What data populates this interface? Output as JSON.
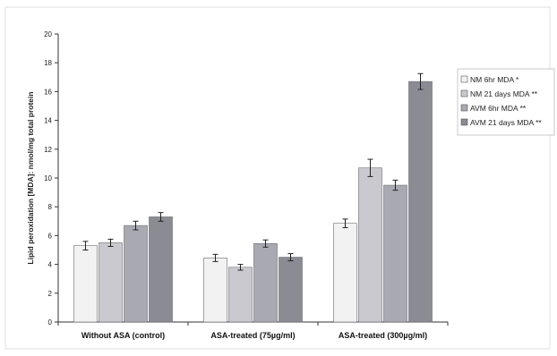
{
  "chart_data": {
    "type": "bar",
    "title": "",
    "xlabel": "",
    "ylabel": "Lipid peroxidation [MDA]: nmol/mg total protein",
    "ylim": [
      0,
      20
    ],
    "yticks": [
      "0",
      "2",
      "4",
      "6",
      "8",
      "10",
      "12",
      "14",
      "16",
      "18",
      "20"
    ],
    "categories": [
      "Without ASA (control)",
      "ASA-treated (75µg/ml)",
      "ASA-treated (300µg/ml)"
    ],
    "series": [
      {
        "name": "NM 6hr MDA *",
        "color": "#f2f2f2",
        "values": [
          5.3,
          4.45,
          6.85
        ],
        "errors": [
          0.3,
          0.25,
          0.3
        ]
      },
      {
        "name": "NM 21 days MDA **",
        "color": "#c9c9cf",
        "values": [
          5.5,
          3.8,
          10.7
        ],
        "errors": [
          0.25,
          0.2,
          0.6
        ]
      },
      {
        "name": "AVM 6hr MDA **",
        "color": "#a9a9b1",
        "values": [
          6.7,
          5.45,
          9.5
        ],
        "errors": [
          0.3,
          0.25,
          0.35
        ]
      },
      {
        "name": "AVM 21 days MDA **",
        "color": "#8b8b94",
        "values": [
          7.3,
          4.5,
          16.7
        ],
        "errors": [
          0.3,
          0.25,
          0.55
        ]
      }
    ],
    "legend_position": "right",
    "grid": false
  }
}
